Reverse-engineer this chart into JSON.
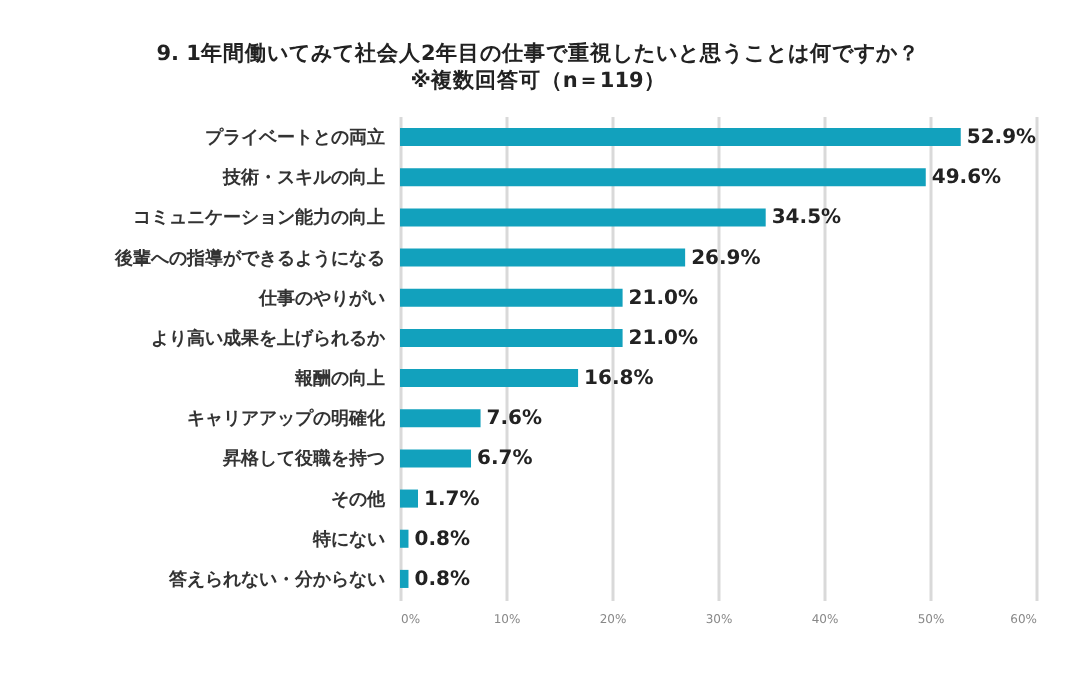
{
  "chart_data": {
    "type": "bar",
    "orientation": "horizontal",
    "title": "9.  1年間働いてみて社会人2年目の仕事で重視したいと思うことは何ですか？",
    "subtitle": "※複数回答可（n＝119）",
    "categories": [
      "プライベートとの両立",
      "技術・スキルの向上",
      "コミュニケーション能力の向上",
      "後輩への指導ができるようになる",
      "仕事のやりがい",
      "より高い成果を上げられるか",
      "報酬の向上",
      "キャリアアップの明確化",
      "昇格して役職を持つ",
      "その他",
      "特にない",
      "答えられない・分からない"
    ],
    "values": [
      52.9,
      49.6,
      34.5,
      26.9,
      21.0,
      21.0,
      16.8,
      7.6,
      6.7,
      1.7,
      0.8,
      0.8
    ],
    "value_labels": [
      "52.9%",
      "49.6%",
      "34.5%",
      "26.9%",
      "21.0%",
      "21.0%",
      "16.8%",
      "7.6%",
      "6.7%",
      "1.7%",
      "0.8%",
      "0.8%"
    ],
    "color": "#12a1bd",
    "xlim": [
      0,
      60
    ],
    "xticks": [
      {
        "value": 0,
        "label": "0%"
      },
      {
        "value": 10,
        "label": "10%"
      },
      {
        "value": 20,
        "label": "20%"
      },
      {
        "value": 30,
        "label": "30%"
      },
      {
        "value": 40,
        "label": "40%"
      },
      {
        "value": 50,
        "label": "50%"
      },
      {
        "value": 60,
        "label": "60%"
      }
    ],
    "grid": "x"
  }
}
